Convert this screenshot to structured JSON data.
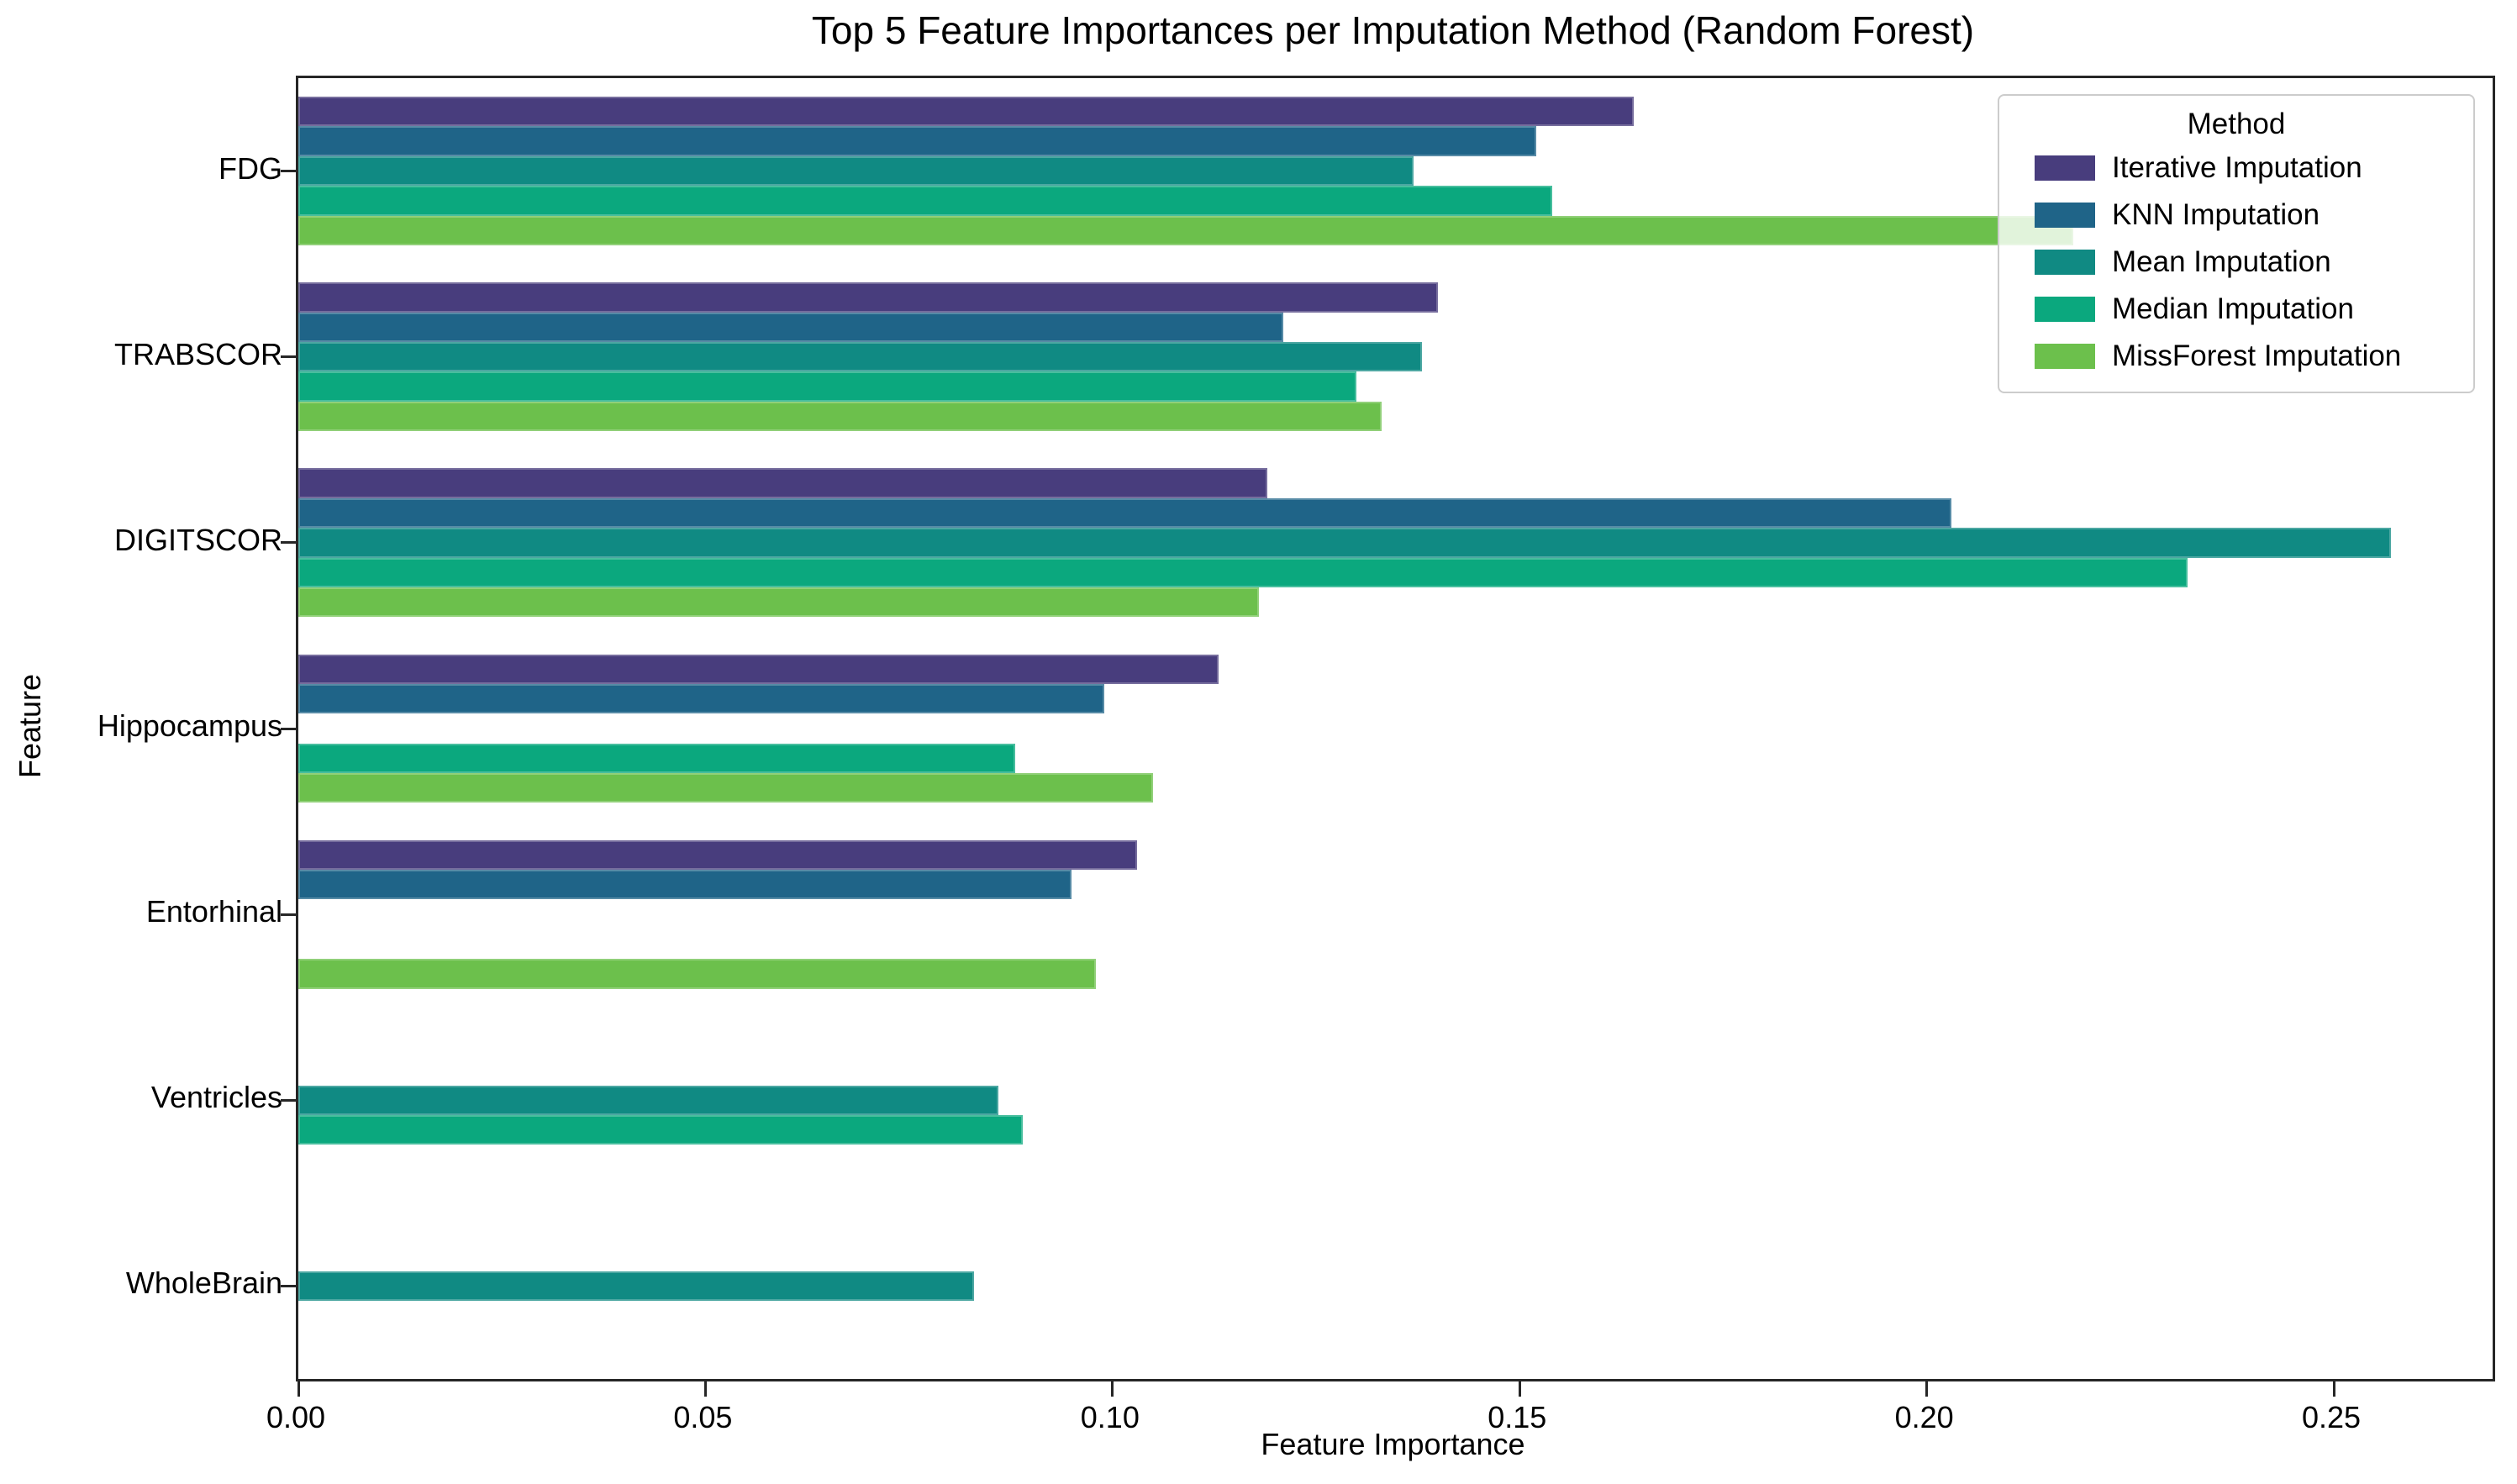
{
  "chart_data": {
    "type": "bar",
    "orientation": "horizontal",
    "title": "Top 5 Feature Importances per Imputation Method (Random Forest)",
    "xlabel": "Feature Importance",
    "ylabel": "Feature",
    "legend_title": "Method",
    "legend_position": "upper right",
    "grid": false,
    "categories": [
      "FDG",
      "TRABSCOR",
      "DIGITSCOR",
      "Hippocampus",
      "Entorhinal",
      "Ventricles",
      "WholeBrain"
    ],
    "xlim": [
      0,
      0.2695
    ],
    "x_ticks": [
      {
        "label": "0.00",
        "value": 0.0
      },
      {
        "label": "0.05",
        "value": 0.05
      },
      {
        "label": "0.10",
        "value": 0.1
      },
      {
        "label": "0.15",
        "value": 0.15
      },
      {
        "label": "0.20",
        "value": 0.2
      },
      {
        "label": "0.25",
        "value": 0.25
      }
    ],
    "series": [
      {
        "name": "Iterative Imputation",
        "color": "#483d7d",
        "values": [
          0.164,
          0.14,
          0.119,
          0.113,
          0.103,
          null,
          null
        ]
      },
      {
        "name": "KNN Imputation",
        "color": "#1f6488",
        "values": [
          0.152,
          0.121,
          0.203,
          0.099,
          0.095,
          null,
          null
        ]
      },
      {
        "name": "Mean Imputation",
        "color": "#108a83",
        "values": [
          0.137,
          0.138,
          0.257,
          null,
          null,
          0.086,
          0.083
        ]
      },
      {
        "name": "Median Imputation",
        "color": "#0ba87e",
        "values": [
          0.154,
          0.13,
          0.232,
          0.088,
          null,
          0.089,
          null
        ]
      },
      {
        "name": "MissForest Imputation",
        "color": "#6cc04c",
        "values": [
          0.218,
          0.133,
          0.118,
          0.105,
          0.098,
          null,
          null
        ]
      }
    ]
  },
  "colors": {
    "spine": "#262626",
    "text": "#000000",
    "legend_border": "#cccccc",
    "legend_background": "rgba(255,255,255,0.8)"
  }
}
